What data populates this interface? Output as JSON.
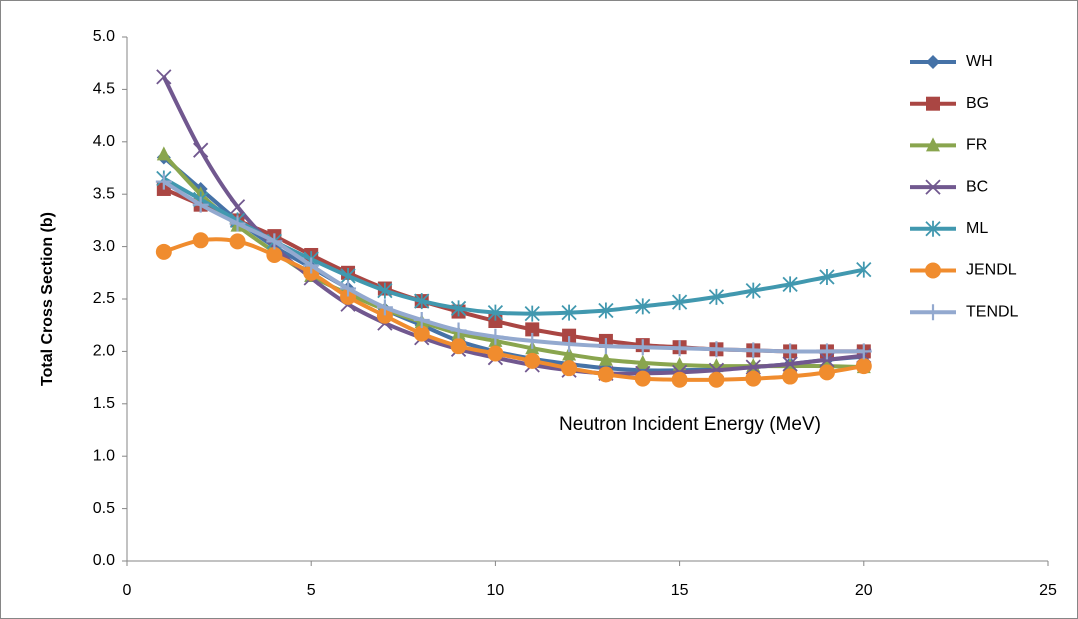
{
  "chart_data": {
    "type": "line",
    "y_label": "Total Cross Section (b)",
    "x_label": "Neutron Incident  Energy (MeV)",
    "x": [
      1,
      2,
      3,
      4,
      5,
      6,
      7,
      8,
      9,
      10,
      11,
      12,
      13,
      14,
      15,
      16,
      17,
      18,
      19,
      20
    ],
    "series": [
      {
        "name": "WH",
        "color": "#4572a7",
        "marker": "diamond",
        "values": [
          3.85,
          3.55,
          3.25,
          3.0,
          2.8,
          2.6,
          2.4,
          2.25,
          2.1,
          2.0,
          1.93,
          1.88,
          1.84,
          1.82,
          1.82,
          1.83,
          1.85,
          1.88,
          1.92,
          1.95
        ]
      },
      {
        "name": "BG",
        "color": "#aa4643",
        "marker": "square",
        "values": [
          3.55,
          3.4,
          3.25,
          3.1,
          2.92,
          2.75,
          2.6,
          2.48,
          2.38,
          2.29,
          2.21,
          2.15,
          2.1,
          2.06,
          2.04,
          2.02,
          2.01,
          2.0,
          2.0,
          2.0
        ]
      },
      {
        "name": "FR",
        "color": "#89a54e",
        "marker": "triangle",
        "values": [
          3.88,
          3.5,
          3.2,
          2.95,
          2.72,
          2.55,
          2.4,
          2.28,
          2.17,
          2.1,
          2.03,
          1.97,
          1.92,
          1.89,
          1.87,
          1.86,
          1.86,
          1.86,
          1.86,
          1.85
        ]
      },
      {
        "name": "BC",
        "color": "#71588f",
        "marker": "x",
        "values": [
          4.62,
          3.92,
          3.38,
          3.0,
          2.7,
          2.45,
          2.27,
          2.13,
          2.02,
          1.94,
          1.87,
          1.82,
          1.79,
          1.79,
          1.8,
          1.82,
          1.85,
          1.88,
          1.92,
          1.96
        ]
      },
      {
        "name": "ML",
        "color": "#4198af",
        "marker": "star",
        "values": [
          3.65,
          3.45,
          3.25,
          3.05,
          2.88,
          2.72,
          2.58,
          2.48,
          2.41,
          2.37,
          2.36,
          2.37,
          2.39,
          2.43,
          2.47,
          2.52,
          2.58,
          2.64,
          2.71,
          2.78
        ]
      },
      {
        "name": "JENDL",
        "color": "#f08c2e",
        "marker": "circle",
        "values": [
          2.95,
          3.06,
          3.05,
          2.92,
          2.75,
          2.52,
          2.34,
          2.17,
          2.05,
          1.98,
          1.91,
          1.84,
          1.78,
          1.74,
          1.73,
          1.73,
          1.74,
          1.76,
          1.8,
          1.86
        ]
      },
      {
        "name": "TENDL",
        "color": "#93a9cf",
        "marker": "plus",
        "values": [
          3.62,
          3.4,
          3.22,
          3.05,
          2.82,
          2.6,
          2.42,
          2.3,
          2.2,
          2.14,
          2.1,
          2.07,
          2.05,
          2.04,
          2.03,
          2.02,
          2.01,
          2.0,
          2.0,
          2.0
        ]
      }
    ],
    "xlim": [
      0,
      25
    ],
    "xticks": [
      0,
      5,
      10,
      15,
      20,
      25
    ],
    "ylim": [
      0,
      5
    ],
    "yticks": [
      {
        "value": 0,
        "label": "0.0"
      },
      0.5,
      {
        "value": 1,
        "label": "1.0"
      },
      1.5,
      {
        "value": 2,
        "label": "2.0"
      },
      2.5,
      {
        "value": 3,
        "label": "3.0"
      },
      3.5,
      {
        "value": 4,
        "label": "4.0"
      },
      4.5,
      {
        "value": 5,
        "label": "5.0"
      }
    ],
    "grid": false,
    "legend": "right"
  }
}
